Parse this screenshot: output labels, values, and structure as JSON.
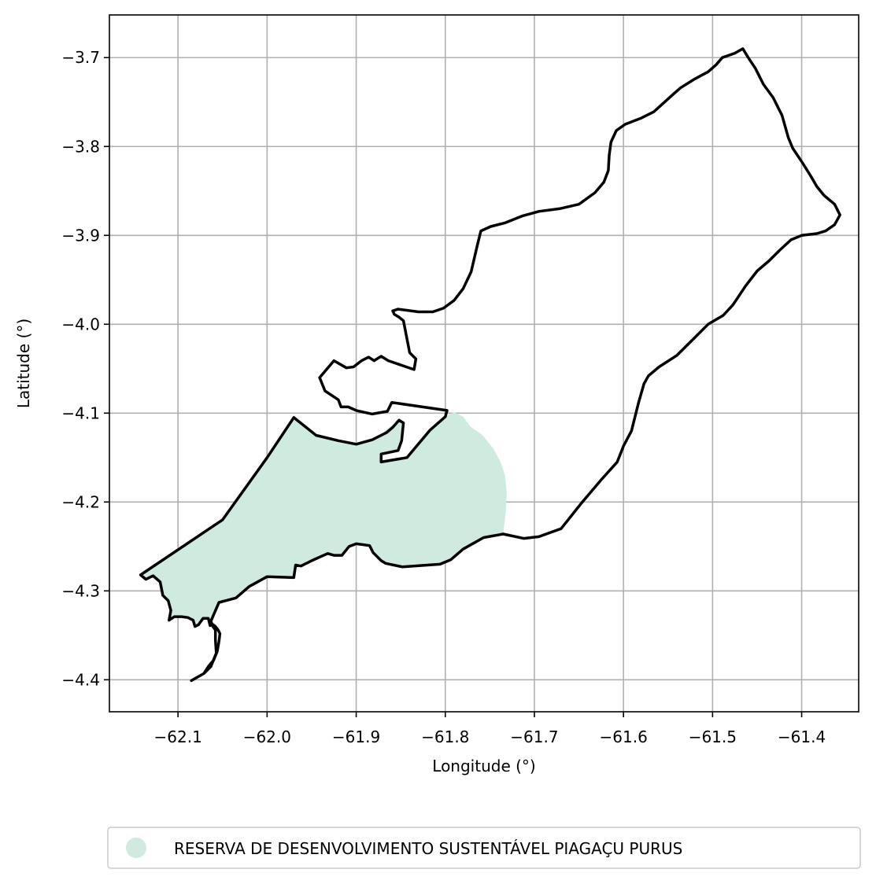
{
  "map": {
    "xlabel": "Longitude (°)",
    "ylabel": "Latitude (°)",
    "grid": true,
    "x_ticks": [
      -62.1,
      -62.0,
      -61.9,
      -61.8,
      -61.7,
      -61.6,
      -61.5,
      -61.4
    ],
    "x_tick_labels": [
      "−62.1",
      "−62.0",
      "−61.9",
      "−61.8",
      "−61.7",
      "−61.6",
      "−61.5",
      "−61.4"
    ],
    "y_ticks": [
      -3.7,
      -3.8,
      -3.9,
      -4.0,
      -4.1,
      -4.2,
      -4.3,
      -4.4
    ],
    "y_tick_labels": [
      "−3.7",
      "−3.8",
      "−3.9",
      "−4.0",
      "−4.1",
      "−4.2",
      "−4.3",
      "−4.4"
    ],
    "xlim": [
      -62.177,
      -61.336
    ],
    "ylim": [
      -4.436,
      -3.652
    ],
    "outline_color": "#000000",
    "boundary": [
      [
        -62.085,
        -4.401
      ],
      [
        -62.071,
        -4.393
      ],
      [
        -62.066,
        -4.385
      ],
      [
        -62.06,
        -4.378
      ],
      [
        -62.056,
        -4.368
      ],
      [
        -62.054,
        -4.357
      ],
      [
        -62.053,
        -4.348
      ],
      [
        -62.055,
        -4.344
      ],
      [
        -62.058,
        -4.34
      ],
      [
        -62.062,
        -4.337
      ],
      [
        -62.064,
        -4.339
      ],
      [
        -62.066,
        -4.331
      ],
      [
        -62.072,
        -4.331
      ],
      [
        -62.077,
        -4.338
      ],
      [
        -62.081,
        -4.34
      ],
      [
        -62.083,
        -4.333
      ],
      [
        -62.089,
        -4.33
      ],
      [
        -62.096,
        -4.329
      ],
      [
        -62.104,
        -4.329
      ],
      [
        -62.11,
        -4.333
      ],
      [
        -62.108,
        -4.322
      ],
      [
        -62.111,
        -4.311
      ],
      [
        -62.117,
        -4.305
      ],
      [
        -62.12,
        -4.29
      ],
      [
        -62.128,
        -4.283
      ],
      [
        -62.136,
        -4.287
      ],
      [
        -62.142,
        -4.282
      ],
      [
        -62.05,
        -4.22
      ],
      [
        -62.0,
        -4.15
      ],
      [
        -61.97,
        -4.105
      ],
      [
        -61.945,
        -4.125
      ],
      [
        -61.92,
        -4.131
      ],
      [
        -61.9,
        -4.135
      ],
      [
        -61.882,
        -4.13
      ],
      [
        -61.866,
        -4.122
      ],
      [
        -61.859,
        -4.116
      ],
      [
        -61.852,
        -4.108
      ],
      [
        -61.847,
        -4.111
      ],
      [
        -61.849,
        -4.131
      ],
      [
        -61.853,
        -4.142
      ],
      [
        -61.872,
        -4.146
      ],
      [
        -61.872,
        -4.155
      ],
      [
        -61.843,
        -4.15
      ],
      [
        -61.817,
        -4.119
      ],
      [
        -61.8,
        -4.104
      ],
      [
        -61.798,
        -4.097
      ],
      [
        -61.86,
        -4.088
      ],
      [
        -61.865,
        -4.098
      ],
      [
        -61.882,
        -4.101
      ],
      [
        -61.9,
        -4.097
      ],
      [
        -61.909,
        -4.093
      ],
      [
        -61.917,
        -4.093
      ],
      [
        -61.92,
        -4.085
      ],
      [
        -61.935,
        -4.075
      ],
      [
        -61.941,
        -4.06
      ],
      [
        -61.925,
        -4.041
      ],
      [
        -61.911,
        -4.049
      ],
      [
        -61.903,
        -4.048
      ],
      [
        -61.894,
        -4.041
      ],
      [
        -61.886,
        -4.037
      ],
      [
        -61.88,
        -4.041
      ],
      [
        -61.872,
        -4.036
      ],
      [
        -61.864,
        -4.041
      ],
      [
        -61.835,
        -4.051
      ],
      [
        -61.833,
        -4.039
      ],
      [
        -61.84,
        -4.032
      ],
      [
        -61.847,
        -3.996
      ],
      [
        -61.852,
        -3.992
      ],
      [
        -61.857,
        -3.989
      ],
      [
        -61.859,
        -3.985
      ],
      [
        -61.853,
        -3.983
      ],
      [
        -61.83,
        -3.986
      ],
      [
        -61.814,
        -3.986
      ],
      [
        -61.802,
        -3.982
      ],
      [
        -61.79,
        -3.973
      ],
      [
        -61.78,
        -3.96
      ],
      [
        -61.771,
        -3.941
      ],
      [
        -61.764,
        -3.911
      ],
      [
        -61.76,
        -3.895
      ],
      [
        -61.749,
        -3.89
      ],
      [
        -61.733,
        -3.886
      ],
      [
        -61.713,
        -3.878
      ],
      [
        -61.695,
        -3.873
      ],
      [
        -61.672,
        -3.87
      ],
      [
        -61.65,
        -3.865
      ],
      [
        -61.632,
        -3.852
      ],
      [
        -61.622,
        -3.84
      ],
      [
        -61.617,
        -3.827
      ],
      [
        -61.616,
        -3.81
      ],
      [
        -61.614,
        -3.795
      ],
      [
        -61.608,
        -3.782
      ],
      [
        -61.598,
        -3.775
      ],
      [
        -61.58,
        -3.768
      ],
      [
        -61.566,
        -3.761
      ],
      [
        -61.555,
        -3.751
      ],
      [
        -61.545,
        -3.742
      ],
      [
        -61.536,
        -3.734
      ],
      [
        -61.52,
        -3.724
      ],
      [
        -61.505,
        -3.716
      ],
      [
        -61.496,
        -3.708
      ],
      [
        -61.489,
        -3.7
      ],
      [
        -61.475,
        -3.695
      ],
      [
        -61.466,
        -3.69
      ],
      [
        -61.46,
        -3.7
      ],
      [
        -61.452,
        -3.712
      ],
      [
        -61.443,
        -3.73
      ],
      [
        -61.432,
        -3.745
      ],
      [
        -61.422,
        -3.765
      ],
      [
        -61.415,
        -3.79
      ],
      [
        -61.41,
        -3.802
      ],
      [
        -61.4,
        -3.817
      ],
      [
        -61.39,
        -3.833
      ],
      [
        -61.383,
        -3.845
      ],
      [
        -61.375,
        -3.855
      ],
      [
        -61.363,
        -3.865
      ],
      [
        -61.357,
        -3.877
      ],
      [
        -61.363,
        -3.888
      ],
      [
        -61.373,
        -3.895
      ],
      [
        -61.383,
        -3.898
      ],
      [
        -61.4,
        -3.9
      ],
      [
        -61.412,
        -3.905
      ],
      [
        -61.425,
        -3.917
      ],
      [
        -61.437,
        -3.929
      ],
      [
        -61.45,
        -3.94
      ],
      [
        -61.463,
        -3.957
      ],
      [
        -61.477,
        -3.978
      ],
      [
        -61.488,
        -3.99
      ],
      [
        -61.505,
        -4.0
      ],
      [
        -61.522,
        -4.017
      ],
      [
        -61.54,
        -4.035
      ],
      [
        -61.56,
        -4.048
      ],
      [
        -61.572,
        -4.058
      ],
      [
        -61.577,
        -4.067
      ],
      [
        -61.583,
        -4.088
      ],
      [
        -61.591,
        -4.12
      ],
      [
        -61.6,
        -4.137
      ],
      [
        -61.607,
        -4.155
      ],
      [
        -61.625,
        -4.175
      ],
      [
        -61.647,
        -4.201
      ],
      [
        -61.67,
        -4.23
      ],
      [
        -61.695,
        -4.239
      ],
      [
        -61.712,
        -4.241
      ],
      [
        -61.735,
        -4.236
      ],
      [
        -61.757,
        -4.24
      ],
      [
        -61.78,
        -4.253
      ],
      [
        -61.794,
        -4.265
      ],
      [
        -61.806,
        -4.27
      ],
      [
        -61.82,
        -4.271
      ],
      [
        -61.848,
        -4.273
      ],
      [
        -61.867,
        -4.269
      ],
      [
        -61.872,
        -4.266
      ],
      [
        -61.881,
        -4.257
      ],
      [
        -61.885,
        -4.249
      ],
      [
        -61.9,
        -4.247
      ],
      [
        -61.908,
        -4.25
      ],
      [
        -61.916,
        -4.26
      ],
      [
        -61.925,
        -4.26
      ],
      [
        -61.932,
        -4.258
      ],
      [
        -61.95,
        -4.266
      ],
      [
        -61.962,
        -4.272
      ],
      [
        -61.968,
        -4.271
      ],
      [
        -61.97,
        -4.285
      ],
      [
        -62.0,
        -4.284
      ],
      [
        -62.02,
        -4.295
      ],
      [
        -62.035,
        -4.308
      ],
      [
        -62.054,
        -4.313
      ],
      [
        -62.063,
        -4.334
      ],
      [
        -62.061,
        -4.34
      ],
      [
        -62.058,
        -4.344
      ],
      [
        -62.058,
        -4.355
      ],
      [
        -62.057,
        -4.37
      ],
      [
        -62.063,
        -4.385
      ],
      [
        -62.07,
        -4.392
      ]
    ],
    "reserve_color": "#cfeade",
    "reserve_polygon": [
      [
        -62.136,
        -4.287
      ],
      [
        -62.142,
        -4.282
      ],
      [
        -62.05,
        -4.22
      ],
      [
        -62.0,
        -4.15
      ],
      [
        -61.97,
        -4.105
      ],
      [
        -61.945,
        -4.125
      ],
      [
        -61.92,
        -4.131
      ],
      [
        -61.9,
        -4.135
      ],
      [
        -61.882,
        -4.13
      ],
      [
        -61.87,
        -4.124
      ],
      [
        -61.866,
        -4.118
      ],
      [
        -61.859,
        -4.113
      ],
      [
        -61.852,
        -4.108
      ],
      [
        -61.847,
        -4.111
      ],
      [
        -61.849,
        -4.131
      ],
      [
        -61.853,
        -4.142
      ],
      [
        -61.872,
        -4.146
      ],
      [
        -61.872,
        -4.155
      ],
      [
        -61.843,
        -4.15
      ],
      [
        -61.817,
        -4.119
      ],
      [
        -61.8,
        -4.104
      ],
      [
        -61.79,
        -4.099
      ],
      [
        -61.78,
        -4.104
      ],
      [
        -61.772,
        -4.115
      ],
      [
        -61.758,
        -4.125
      ],
      [
        -61.746,
        -4.14
      ],
      [
        -61.738,
        -4.155
      ],
      [
        -61.733,
        -4.17
      ],
      [
        -61.731,
        -4.19
      ],
      [
        -61.732,
        -4.21
      ],
      [
        -61.735,
        -4.236
      ],
      [
        -61.757,
        -4.24
      ],
      [
        -61.78,
        -4.253
      ],
      [
        -61.794,
        -4.265
      ],
      [
        -61.806,
        -4.27
      ],
      [
        -61.82,
        -4.271
      ],
      [
        -61.848,
        -4.273
      ],
      [
        -61.867,
        -4.269
      ],
      [
        -61.872,
        -4.266
      ],
      [
        -61.881,
        -4.257
      ],
      [
        -61.885,
        -4.249
      ],
      [
        -61.9,
        -4.247
      ],
      [
        -61.908,
        -4.25
      ],
      [
        -61.916,
        -4.26
      ],
      [
        -61.925,
        -4.26
      ],
      [
        -61.932,
        -4.258
      ],
      [
        -61.95,
        -4.266
      ],
      [
        -61.962,
        -4.272
      ],
      [
        -61.968,
        -4.271
      ],
      [
        -61.97,
        -4.285
      ],
      [
        -62.0,
        -4.284
      ],
      [
        -62.02,
        -4.295
      ],
      [
        -62.035,
        -4.308
      ],
      [
        -62.054,
        -4.313
      ],
      [
        -62.062,
        -4.337
      ],
      [
        -62.066,
        -4.331
      ],
      [
        -62.072,
        -4.331
      ],
      [
        -62.077,
        -4.338
      ],
      [
        -62.081,
        -4.34
      ],
      [
        -62.083,
        -4.333
      ],
      [
        -62.089,
        -4.33
      ],
      [
        -62.096,
        -4.329
      ],
      [
        -62.104,
        -4.329
      ],
      [
        -62.11,
        -4.333
      ],
      [
        -62.108,
        -4.322
      ],
      [
        -62.111,
        -4.311
      ],
      [
        -62.117,
        -4.305
      ],
      [
        -62.12,
        -4.29
      ],
      [
        -62.128,
        -4.283
      ]
    ]
  },
  "legend": {
    "label": "RESERVA DE DESENVOLVIMENTO SUSTENTÁVEL PIAGAÇU PURUS",
    "marker_color": "#cfeade"
  }
}
